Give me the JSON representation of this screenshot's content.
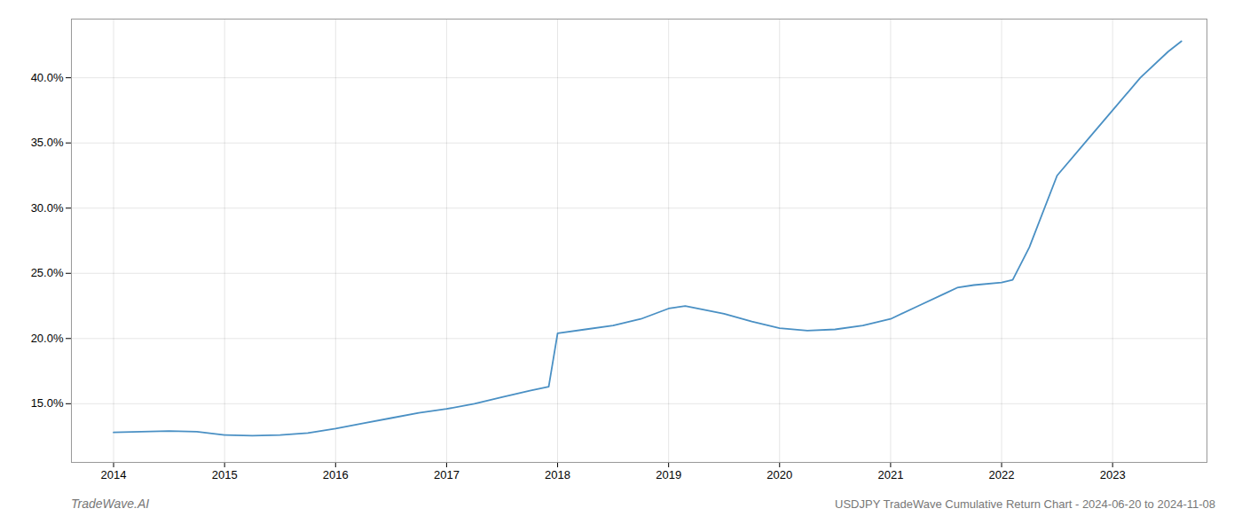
{
  "chart_data": {
    "type": "line",
    "title": "USDJPY TradeWave Cumulative Return Chart - 2024-06-20 to 2024-11-08",
    "annotations": [
      "TradeWave.AI"
    ],
    "x": [
      2014.0,
      2014.25,
      2014.5,
      2014.75,
      2015.0,
      2015.25,
      2015.5,
      2015.75,
      2016.0,
      2016.25,
      2016.5,
      2016.75,
      2017.0,
      2017.25,
      2017.5,
      2017.75,
      2017.92,
      2018.0,
      2018.25,
      2018.5,
      2018.75,
      2019.0,
      2019.15,
      2019.5,
      2019.75,
      2020.0,
      2020.25,
      2020.5,
      2020.75,
      2021.0,
      2021.25,
      2021.5,
      2021.6,
      2021.75,
      2022.0,
      2022.1,
      2022.25,
      2022.5,
      2022.75,
      2023.0,
      2023.25,
      2023.5,
      2023.62
    ],
    "values": [
      12.8,
      12.85,
      12.9,
      12.85,
      12.6,
      12.55,
      12.6,
      12.75,
      13.1,
      13.5,
      13.9,
      14.3,
      14.6,
      15.0,
      15.5,
      16.0,
      16.3,
      20.4,
      20.7,
      21.0,
      21.5,
      22.3,
      22.5,
      21.9,
      21.3,
      20.8,
      20.6,
      20.7,
      21.0,
      21.5,
      22.5,
      23.5,
      23.9,
      24.1,
      24.3,
      24.5,
      27.0,
      32.5,
      35.0,
      37.5,
      40.0,
      42.0,
      42.8
    ],
    "color": "#4a90c4",
    "xlim": [
      2013.62,
      2023.85
    ],
    "ylim": [
      10.5,
      44.5
    ],
    "xticks": [
      2014,
      2015,
      2016,
      2017,
      2018,
      2019,
      2020,
      2021,
      2022,
      2023
    ],
    "yticks": [
      {
        "value": 15.0,
        "label": "15.0%"
      },
      {
        "value": 20.0,
        "label": "20.0%"
      },
      {
        "value": 25.0,
        "label": "25.0%"
      },
      {
        "value": 30.0,
        "label": "30.0%"
      },
      {
        "value": 35.0,
        "label": "35.0%"
      },
      {
        "value": 40.0,
        "label": "40.0%"
      }
    ],
    "grid": true
  }
}
